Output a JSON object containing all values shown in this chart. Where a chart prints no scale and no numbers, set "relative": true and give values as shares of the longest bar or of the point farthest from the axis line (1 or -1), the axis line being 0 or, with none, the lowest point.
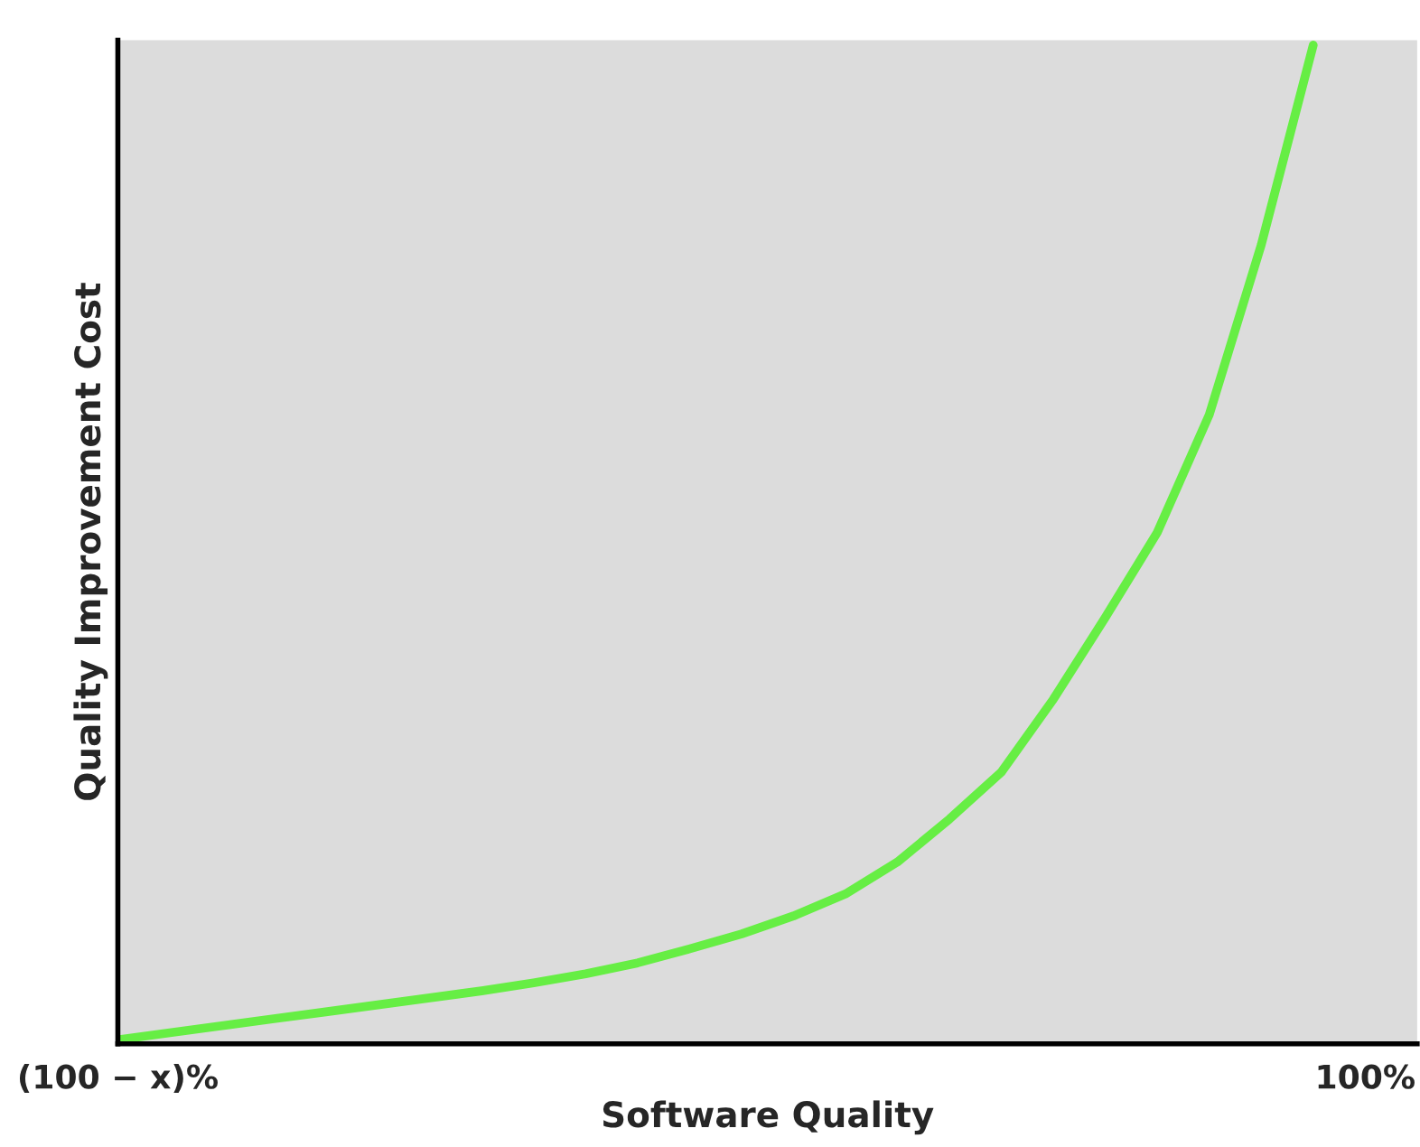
{
  "chart_data": {
    "type": "line",
    "relative": true,
    "xlabel": "Software Quality",
    "ylabel": "Quality Improvement Cost",
    "categories": [
      "(100 − x)%",
      null,
      null,
      null,
      null,
      null,
      null,
      null,
      null,
      null,
      null,
      null,
      null,
      null,
      null,
      null,
      null,
      null,
      null,
      null,
      null,
      null,
      null,
      null,
      "100%"
    ],
    "series": [
      {
        "color": "#66ee44",
        "values": [
          0.004,
          0.011,
          0.018,
          0.025,
          0.032,
          0.039,
          0.046,
          0.053,
          0.061,
          0.07,
          0.081,
          0.095,
          0.11,
          0.128,
          0.15,
          0.182,
          0.225,
          0.272,
          0.345,
          0.427,
          0.512,
          0.63,
          0.8,
          1.0,
          null
        ]
      }
    ],
    "tick_labels": "x",
    "grid": false,
    "legend": false,
    "marker": "none",
    "line_style": "solid"
  }
}
